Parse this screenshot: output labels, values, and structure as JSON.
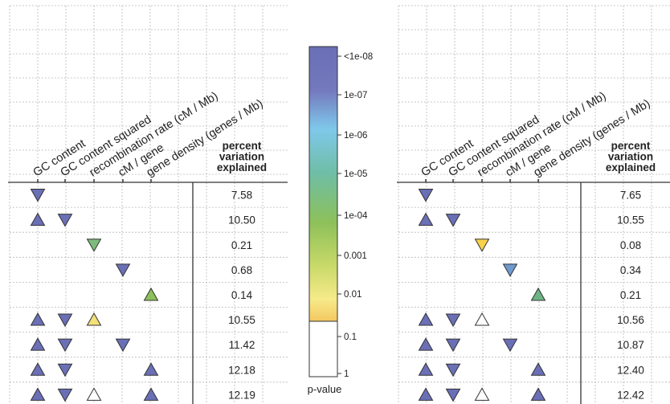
{
  "chart_data": {
    "type": "table",
    "variables": [
      "GC content",
      "GC content squared",
      "recombination rate (cM / Mb)",
      "cM / gene",
      "gene density (genes / Mb)"
    ],
    "value_header": [
      "percent",
      "variation",
      "explained"
    ],
    "legend": {
      "title": "p-value",
      "tick_labels": [
        "<1e-08",
        "1e-07",
        "1e-06",
        "1e-05",
        "1e-04",
        "0.001",
        "0.01",
        "0.1",
        "1"
      ],
      "colors": [
        "#6a6fb6",
        "#7fc8ea",
        "#6fbea6",
        "#8dc05a",
        "#f2d35a",
        "#ffffff"
      ]
    },
    "panels": [
      {
        "rows": [
          {
            "cells": [
              {
                "var": 0,
                "dir": "down",
                "color": "#6a6fb6"
              }
            ],
            "value": "7.58"
          },
          {
            "cells": [
              {
                "var": 0,
                "dir": "up",
                "color": "#6a6fb6"
              },
              {
                "var": 1,
                "dir": "down",
                "color": "#6a6fb6"
              }
            ],
            "value": "10.50"
          },
          {
            "cells": [
              {
                "var": 2,
                "dir": "down",
                "color": "#7dbb7a"
              }
            ],
            "value": "0.21"
          },
          {
            "cells": [
              {
                "var": 3,
                "dir": "down",
                "color": "#6a6fb6"
              }
            ],
            "value": "0.68"
          },
          {
            "cells": [
              {
                "var": 4,
                "dir": "up",
                "color": "#8dc05a"
              }
            ],
            "value": "0.14"
          },
          {
            "cells": [
              {
                "var": 0,
                "dir": "up",
                "color": "#6a6fb6"
              },
              {
                "var": 1,
                "dir": "down",
                "color": "#6a6fb6"
              },
              {
                "var": 2,
                "dir": "up",
                "color": "#f2e07a"
              }
            ],
            "value": "10.55"
          },
          {
            "cells": [
              {
                "var": 0,
                "dir": "up",
                "color": "#6a6fb6"
              },
              {
                "var": 1,
                "dir": "down",
                "color": "#6a6fb6"
              },
              {
                "var": 3,
                "dir": "down",
                "color": "#6a6fb6"
              }
            ],
            "value": "11.42"
          },
          {
            "cells": [
              {
                "var": 0,
                "dir": "up",
                "color": "#6a6fb6"
              },
              {
                "var": 1,
                "dir": "down",
                "color": "#6a6fb6"
              },
              {
                "var": 4,
                "dir": "up",
                "color": "#6a6fb6"
              }
            ],
            "value": "12.18"
          },
          {
            "cells": [
              {
                "var": 0,
                "dir": "up",
                "color": "#6a6fb6"
              },
              {
                "var": 1,
                "dir": "down",
                "color": "#6a6fb6"
              },
              {
                "var": 2,
                "dir": "up",
                "color": "#ffffff"
              },
              {
                "var": 4,
                "dir": "up",
                "color": "#6a6fb6"
              }
            ],
            "value": "12.19"
          }
        ]
      },
      {
        "rows": [
          {
            "cells": [
              {
                "var": 0,
                "dir": "down",
                "color": "#6a6fb6"
              }
            ],
            "value": "7.65"
          },
          {
            "cells": [
              {
                "var": 0,
                "dir": "up",
                "color": "#6a6fb6"
              },
              {
                "var": 1,
                "dir": "down",
                "color": "#6a6fb6"
              }
            ],
            "value": "10.55"
          },
          {
            "cells": [
              {
                "var": 2,
                "dir": "down",
                "color": "#f7d14a"
              }
            ],
            "value": "0.08"
          },
          {
            "cells": [
              {
                "var": 3,
                "dir": "down",
                "color": "#6f9ad0"
              }
            ],
            "value": "0.34"
          },
          {
            "cells": [
              {
                "var": 4,
                "dir": "up",
                "color": "#6cb486"
              }
            ],
            "value": "0.21"
          },
          {
            "cells": [
              {
                "var": 0,
                "dir": "up",
                "color": "#6a6fb6"
              },
              {
                "var": 1,
                "dir": "down",
                "color": "#6a6fb6"
              },
              {
                "var": 2,
                "dir": "up",
                "color": "#ffffff"
              }
            ],
            "value": "10.56"
          },
          {
            "cells": [
              {
                "var": 0,
                "dir": "up",
                "color": "#6a6fb6"
              },
              {
                "var": 1,
                "dir": "down",
                "color": "#6a6fb6"
              },
              {
                "var": 3,
                "dir": "down",
                "color": "#6a6fb6"
              }
            ],
            "value": "10.87"
          },
          {
            "cells": [
              {
                "var": 0,
                "dir": "up",
                "color": "#6a6fb6"
              },
              {
                "var": 1,
                "dir": "down",
                "color": "#6a6fb6"
              },
              {
                "var": 4,
                "dir": "up",
                "color": "#6a6fb6"
              }
            ],
            "value": "12.40"
          },
          {
            "cells": [
              {
                "var": 0,
                "dir": "up",
                "color": "#6a6fb6"
              },
              {
                "var": 1,
                "dir": "down",
                "color": "#6a6fb6"
              },
              {
                "var": 2,
                "dir": "up",
                "color": "#ffffff"
              },
              {
                "var": 4,
                "dir": "up",
                "color": "#6a6fb6"
              }
            ],
            "value": "12.42"
          }
        ]
      }
    ]
  }
}
